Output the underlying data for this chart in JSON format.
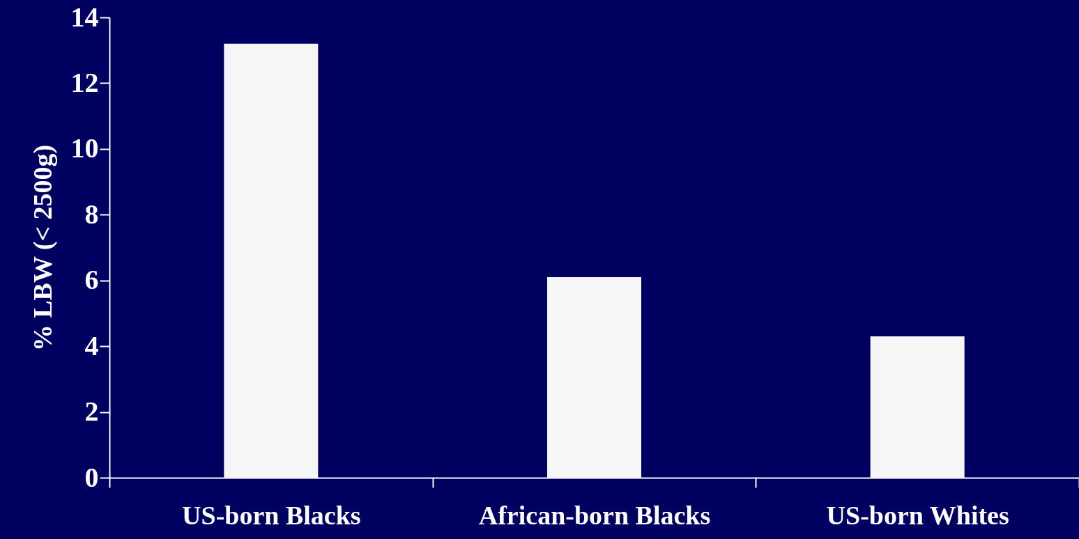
{
  "chart_data": {
    "type": "bar",
    "ylabel": "% LBW (< 2500g)",
    "categories": [
      "US-born Blacks",
      "African-born Blacks",
      "US-born Whites"
    ],
    "values": [
      13.2,
      6.1,
      4.3
    ],
    "color": "#f6f6f6",
    "ylim": [
      0,
      14
    ],
    "yticks": [
      0,
      2,
      4,
      6,
      8,
      10,
      12,
      14
    ],
    "grid": false
  }
}
